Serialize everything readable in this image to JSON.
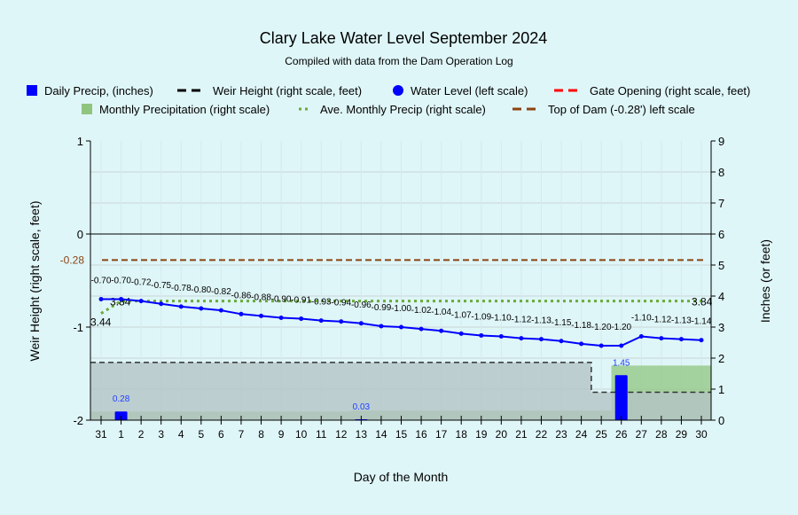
{
  "chart_data": {
    "type": "line",
    "title": "Clary Lake Water Level September 2024",
    "subtitle": "Compiled with data from the Dam Operation Log",
    "xlabel": "Day of the Month",
    "ylabel_left": "Weir Height (right scale, feet)",
    "ylabel_right": "Inches (or feet)",
    "ylim_left": [
      -2,
      1
    ],
    "ylim_right": [
      0,
      9
    ],
    "left_ticks": [
      "1",
      "0",
      "-1",
      "-2"
    ],
    "left_tick_values": [
      1,
      0,
      -1,
      -2
    ],
    "right_ticks": [
      "0",
      "1",
      "2",
      "3",
      "4",
      "5",
      "6",
      "7",
      "8",
      "9"
    ],
    "categories": [
      "31",
      "1",
      "2",
      "3",
      "4",
      "5",
      "6",
      "7",
      "8",
      "9",
      "10",
      "11",
      "12",
      "13",
      "14",
      "15",
      "16",
      "17",
      "18",
      "19",
      "20",
      "21",
      "22",
      "23",
      "24",
      "25",
      "26",
      "27",
      "28",
      "29",
      "30"
    ],
    "legend": [
      {
        "label": "Daily Precip, (inches)",
        "color": "#0000ff",
        "kind": "square"
      },
      {
        "label": "Weir Height (right scale, feet)",
        "color": "#000000",
        "kind": "dash"
      },
      {
        "label": "Water Level (left scale)",
        "color": "#0000ff",
        "kind": "circle"
      },
      {
        "label": "Gate Opening (right scale, feet)",
        "color": "#ff0000",
        "kind": "dash"
      },
      {
        "label": "Monthly Precipitation (right scale)",
        "color": "#90c580",
        "kind": "square"
      },
      {
        "label": "Ave. Monthly Precip (right scale)",
        "color": "#6aaa3a",
        "kind": "dot"
      },
      {
        "label": "Top of Dam (-0.28') left scale",
        "color": "#8b4513",
        "kind": "dash"
      }
    ],
    "water_level": [
      -0.7,
      -0.7,
      -0.72,
      -0.75,
      -0.78,
      -0.8,
      -0.82,
      -0.86,
      -0.88,
      -0.9,
      -0.91,
      -0.93,
      -0.94,
      -0.96,
      -0.99,
      -1.0,
      -1.02,
      -1.04,
      -1.07,
      -1.09,
      -1.1,
      -1.12,
      -1.13,
      -1.15,
      -1.18,
      -1.2,
      -1.2,
      -1.1,
      -1.12,
      -1.13,
      -1.14
    ],
    "water_level_labels": [
      "-0.70",
      "-0.70",
      "-0.72",
      "-0.75",
      "-0.78",
      "-0.80",
      "-0.82",
      "-0.86",
      "-0.88",
      "-0.90",
      "-0.91",
      "-0.93",
      "-0.94",
      "-0.96",
      "-0.99",
      "-1.00",
      "-1.02",
      "-1.04",
      "-1.07",
      "-1.09",
      "-1.10",
      "-1.12",
      "-1.13",
      "-1.15",
      "-1.18",
      "-1.20",
      "-1.20",
      "-1.10",
      "-1.12",
      "-1.13",
      "-1.14"
    ],
    "daily_precip": [
      {
        "day": "1",
        "value": 0.28,
        "label": "0.28"
      },
      {
        "day": "13",
        "value": 0.03,
        "label": "0.03"
      },
      {
        "day": "26",
        "value": 1.45,
        "label": "1.45"
      }
    ],
    "monthly_precip": [
      0.28,
      0.28,
      0.28,
      0.28,
      0.28,
      0.28,
      0.28,
      0.28,
      0.28,
      0.28,
      0.28,
      0.28,
      0.28,
      0.31,
      0.31,
      0.31,
      0.31,
      0.31,
      0.31,
      0.31,
      0.31,
      0.31,
      0.31,
      0.31,
      0.31,
      0.31,
      1.76,
      1.76,
      1.76,
      1.76,
      1.76
    ],
    "weir_height": [
      1.86,
      1.86,
      1.86,
      1.86,
      1.86,
      1.86,
      1.86,
      1.86,
      1.86,
      1.86,
      1.86,
      1.86,
      1.86,
      1.86,
      1.86,
      1.86,
      1.86,
      1.86,
      1.86,
      1.86,
      1.86,
      1.86,
      1.86,
      1.86,
      1.86,
      0.9,
      0.9,
      0.9,
      0.9,
      0.9,
      0.9
    ],
    "ave_monthly_precip": {
      "start": 3.44,
      "value": 3.84,
      "labels": [
        "3.44",
        "3.84",
        "3.84"
      ]
    },
    "top_of_dam": {
      "value": -0.28,
      "label": "-0.28"
    },
    "colors": {
      "background": "#dff6f8",
      "water": "#0000ff",
      "weir_fill": "#b4c4c6",
      "monthly": "#90c580",
      "ave": "#6aaa3a",
      "dam": "#8b4513"
    }
  }
}
